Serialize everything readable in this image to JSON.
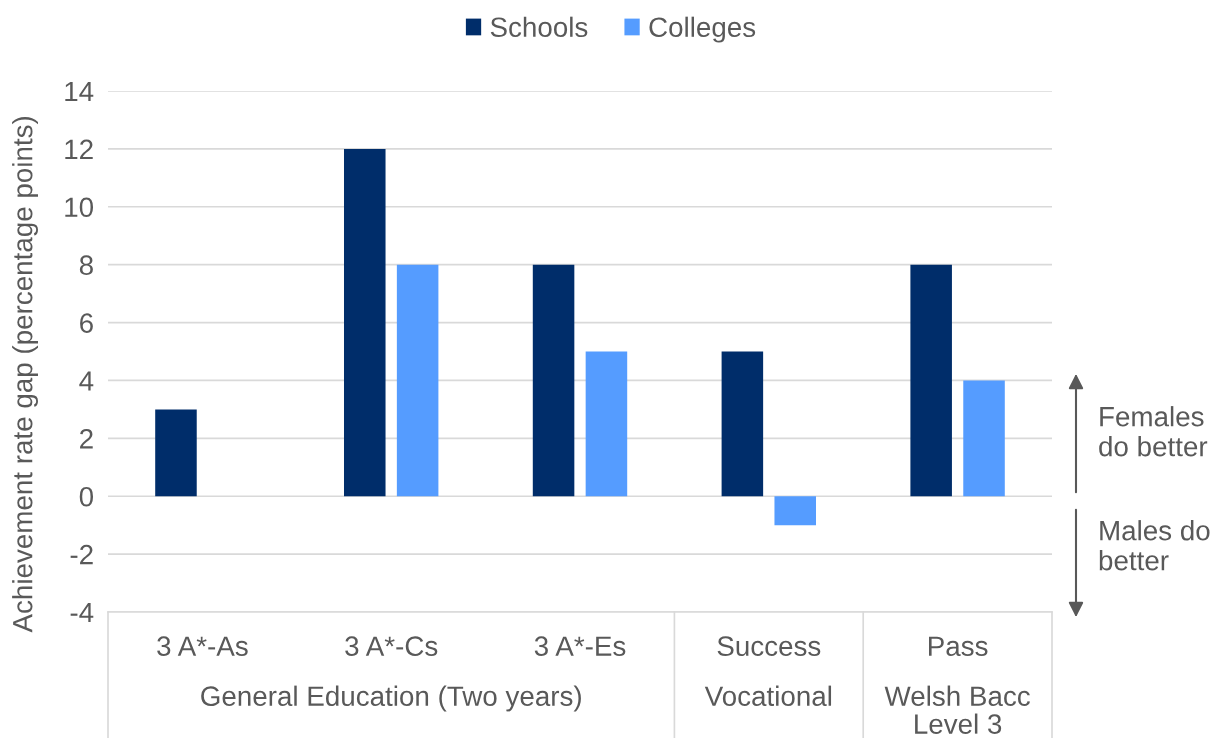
{
  "chart_data": {
    "type": "bar",
    "ylabel": "Achievement rate gap (percentage points)",
    "categories": [
      "3 A*-As",
      "3 A*-Cs",
      "3 A*-Es",
      "Success",
      "Pass"
    ],
    "series": [
      {
        "name": "Schools",
        "color": "#002d6a",
        "values": [
          3,
          12,
          8,
          5,
          8
        ]
      },
      {
        "name": "Colleges",
        "color": "#559cff",
        "values": [
          null,
          8,
          5,
          -1,
          4
        ]
      }
    ],
    "ylim": [
      -4,
      14
    ],
    "yticks": [
      -4,
      -2,
      0,
      2,
      4,
      6,
      8,
      10,
      12,
      14
    ],
    "grid": "y",
    "legend": "top",
    "annotations": [
      "General Education (Two years)",
      "Vocational",
      "Welsh Bacc Level 3",
      "Females do better",
      "Males do better"
    ]
  }
}
